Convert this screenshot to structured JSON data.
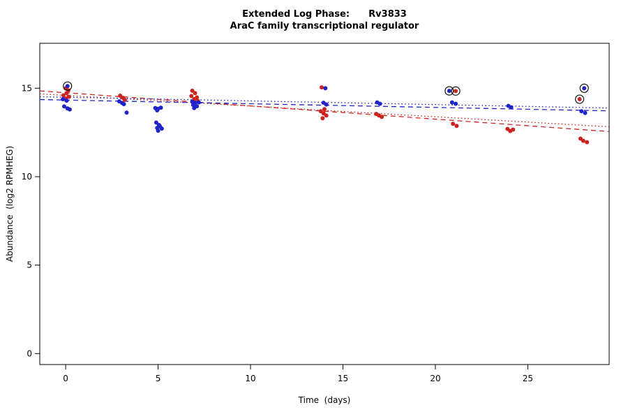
{
  "chart_data": {
    "type": "scatter",
    "title": "Extended Log Phase:      Rv3833",
    "subtitle": "AraC family transcriptional regulator",
    "xlabel": "Time  (days)",
    "ylabel": "Abundance  (log2 RPMHEG)",
    "xlim": [
      -1.4,
      29.4
    ],
    "ylim": [
      -0.62,
      17.54
    ],
    "xticks": [
      0,
      5,
      10,
      15,
      20,
      25
    ],
    "yticks": [
      0,
      5,
      10,
      15
    ],
    "grid": false,
    "legend": "none",
    "colors": {
      "red": "#cb2420",
      "blue": "#2023c8",
      "ring": "#111111",
      "axis": "#000000"
    },
    "series": [
      {
        "name": "red",
        "color_key": "red",
        "points": [
          [
            0.0,
            15.0
          ],
          [
            0.15,
            14.88
          ],
          [
            0.05,
            14.72
          ],
          [
            -0.12,
            14.6
          ],
          [
            0.18,
            14.52
          ],
          [
            0.02,
            14.42
          ],
          [
            2.95,
            14.58
          ],
          [
            3.1,
            14.46
          ],
          [
            3.2,
            14.34
          ],
          [
            6.85,
            14.86
          ],
          [
            7.0,
            14.72
          ],
          [
            6.8,
            14.56
          ],
          [
            7.1,
            14.48
          ],
          [
            6.95,
            14.38
          ],
          [
            7.15,
            14.28
          ],
          [
            13.85,
            15.05
          ],
          [
            14.0,
            13.82
          ],
          [
            13.8,
            13.7
          ],
          [
            13.95,
            13.58
          ],
          [
            14.1,
            13.46
          ],
          [
            13.9,
            13.3
          ],
          [
            16.8,
            13.55
          ],
          [
            16.95,
            13.46
          ],
          [
            17.1,
            13.38
          ],
          [
            20.95,
            12.99
          ],
          [
            21.15,
            12.87
          ],
          [
            23.9,
            12.7
          ],
          [
            24.05,
            12.58
          ],
          [
            24.2,
            12.66
          ],
          [
            27.85,
            12.15
          ],
          [
            28.0,
            12.03
          ],
          [
            28.2,
            11.95
          ]
        ]
      },
      {
        "name": "blue",
        "color_key": "blue",
        "points": [
          [
            -0.15,
            14.38
          ],
          [
            0.05,
            14.3
          ],
          [
            -0.08,
            13.97
          ],
          [
            0.1,
            13.86
          ],
          [
            0.22,
            13.8
          ],
          [
            2.9,
            14.26
          ],
          [
            3.05,
            14.17
          ],
          [
            3.15,
            14.1
          ],
          [
            3.3,
            13.62
          ],
          [
            4.85,
            13.88
          ],
          [
            5.0,
            13.84
          ],
          [
            5.15,
            13.9
          ],
          [
            4.95,
            13.75
          ],
          [
            4.9,
            13.06
          ],
          [
            5.05,
            12.92
          ],
          [
            4.95,
            12.76
          ],
          [
            5.2,
            12.72
          ],
          [
            5.1,
            12.84
          ],
          [
            5.0,
            12.6
          ],
          [
            6.85,
            14.24
          ],
          [
            7.0,
            14.18
          ],
          [
            7.2,
            14.2
          ],
          [
            6.9,
            14.06
          ],
          [
            7.1,
            13.98
          ],
          [
            6.95,
            13.88
          ],
          [
            14.05,
            15.0
          ],
          [
            13.95,
            14.18
          ],
          [
            14.1,
            14.08
          ],
          [
            16.85,
            14.2
          ],
          [
            17.0,
            14.12
          ],
          [
            20.9,
            14.2
          ],
          [
            21.1,
            14.12
          ],
          [
            23.95,
            14.0
          ],
          [
            24.1,
            13.92
          ],
          [
            27.9,
            13.7
          ],
          [
            28.1,
            13.6
          ]
        ]
      }
    ],
    "outlier_rings": [
      {
        "x": 0.1,
        "y": 15.12,
        "color_key": "blue"
      },
      {
        "x": 20.75,
        "y": 14.85,
        "color_key": "blue"
      },
      {
        "x": 21.1,
        "y": 14.84,
        "color_key": "red"
      },
      {
        "x": 28.05,
        "y": 15.0,
        "color_key": "blue"
      },
      {
        "x": 27.8,
        "y": 14.38,
        "color_key": "red"
      }
    ],
    "trend_lines": [
      {
        "name": "red-dashed",
        "color_key": "red",
        "style": "dashed",
        "x1": -1.4,
        "y1": 14.85,
        "x2": 29.4,
        "y2": 12.55
      },
      {
        "name": "red-dotted",
        "color_key": "red",
        "style": "dotted",
        "x1": -1.4,
        "y1": 14.68,
        "x2": 29.4,
        "y2": 12.82
      },
      {
        "name": "blue-dashed",
        "color_key": "blue",
        "style": "dashed",
        "x1": -1.4,
        "y1": 14.36,
        "x2": 29.4,
        "y2": 13.72
      },
      {
        "name": "blue-dotted",
        "color_key": "blue",
        "style": "dotted",
        "x1": -1.4,
        "y1": 14.52,
        "x2": 29.4,
        "y2": 13.88
      }
    ]
  }
}
